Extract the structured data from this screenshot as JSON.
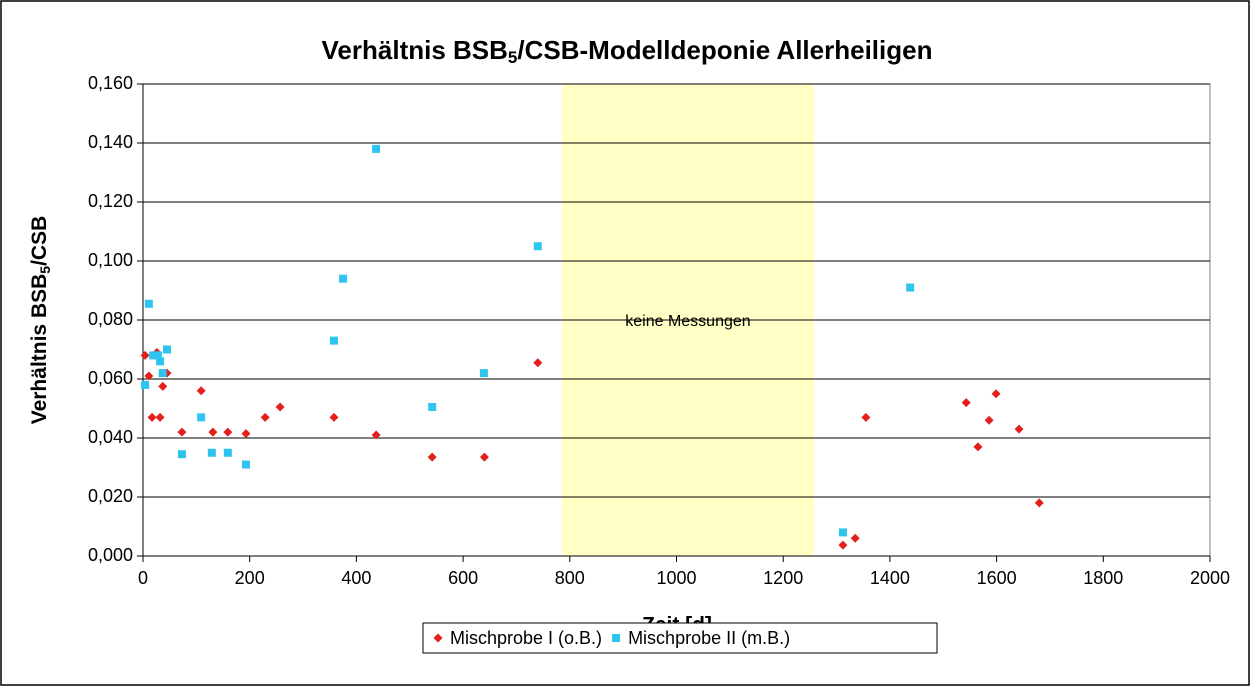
{
  "chart_data": {
    "type": "scatter",
    "title": [
      "Verhältnis BSB",
      "5",
      "/CSB-Modelldeponie Allerheiligen"
    ],
    "x_label": "Zeit [d]",
    "y_label": [
      "Verhältnis BSB",
      "5",
      "/CSB"
    ],
    "xlim": [
      0,
      2000
    ],
    "xticks": [
      0,
      200,
      400,
      600,
      800,
      1000,
      1200,
      1400,
      1600,
      1800,
      2000
    ],
    "ylim": [
      0,
      0.16
    ],
    "yticks": [
      {
        "value": 0,
        "label": "0,000"
      },
      {
        "value": 0.02,
        "label": "0,020"
      },
      {
        "value": 0.04,
        "label": "0,040"
      },
      {
        "value": 0.06,
        "label": "0,060"
      },
      {
        "value": 0.08,
        "label": "0,080"
      },
      {
        "value": 0.1,
        "label": "0,100"
      },
      {
        "value": 0.12,
        "label": "0,120"
      },
      {
        "value": 0.14,
        "label": "0,140"
      },
      {
        "value": 0.16,
        "label": "0,160"
      }
    ],
    "grid": true,
    "legend": "bottom",
    "shaded_region": {
      "x": [
        785,
        1258
      ],
      "label": "keine Messungen",
      "color": "#ffffc6"
    },
    "series": [
      {
        "name": "Mischprobe I (o.B.)",
        "color": "#e3201c",
        "marker": "diamond",
        "x": [
          4,
          11,
          17,
          26,
          32,
          37,
          45,
          73,
          109,
          131,
          159,
          193,
          229,
          257,
          358,
          437,
          542,
          640,
          740,
          1312,
          1335,
          1355,
          1543,
          1565,
          1586,
          1599,
          1642,
          1680
        ],
        "values": [
          0.068,
          0.061,
          0.047,
          0.069,
          0.047,
          0.0575,
          0.062,
          0.042,
          0.056,
          0.042,
          0.042,
          0.0415,
          0.047,
          0.0505,
          0.047,
          0.041,
          0.0335,
          0.0335,
          0.0655,
          0.0037,
          0.006,
          0.047,
          0.052,
          0.037,
          0.046,
          0.055,
          0.043,
          0.018
        ]
      },
      {
        "name": "Mischprobe II (m.B.)",
        "color": "#2ec4f0",
        "marker": "square",
        "x": [
          4,
          11,
          19,
          28,
          32,
          37,
          45,
          73,
          109,
          129,
          159,
          193,
          358,
          375,
          437,
          542,
          639,
          740,
          1312,
          1438
        ],
        "values": [
          0.058,
          0.0855,
          0.068,
          0.068,
          0.066,
          0.062,
          0.07,
          0.0345,
          0.047,
          0.035,
          0.035,
          0.031,
          0.073,
          0.094,
          0.138,
          0.0505,
          0.062,
          0.105,
          0.008,
          0.091
        ]
      }
    ]
  }
}
